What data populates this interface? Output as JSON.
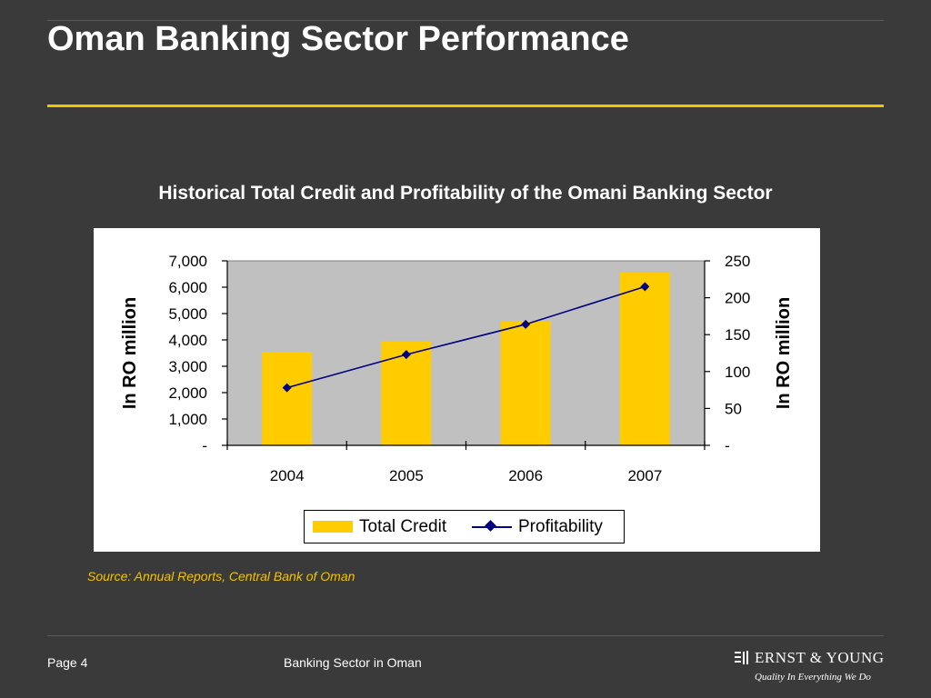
{
  "slide": {
    "title": "Oman Banking Sector Performance",
    "source": "Source: Annual Reports, Central Bank of Oman",
    "page": "Page 4",
    "footer": "Banking Sector in Oman",
    "logo_name": "ERNST & YOUNG",
    "logo_tagline": "Quality In Everything We Do"
  },
  "colors": {
    "background": "#3a3a3a",
    "accent": "#f5c400",
    "bar": "#ffcc00",
    "line": "#000080",
    "plot_bg": "#c0c0c0"
  },
  "chart_data": {
    "type": "bar",
    "title": "Historical Total Credit and Profitability of the Omani Banking Sector",
    "categories": [
      "2004",
      "2005",
      "2006",
      "2007"
    ],
    "series": [
      {
        "name": "Total Credit",
        "type": "bar",
        "axis": "left",
        "values": [
          3550,
          3950,
          4720,
          6550
        ]
      },
      {
        "name": "Profitability",
        "type": "line",
        "axis": "right",
        "values": [
          78,
          123,
          164,
          215
        ]
      }
    ],
    "ylabel": "In RO million",
    "y2label": "In RO million",
    "ylim": [
      0,
      7000
    ],
    "y2lim": [
      0,
      250
    ],
    "yticks": [
      "-",
      "1,000",
      "2,000",
      "3,000",
      "4,000",
      "5,000",
      "6,000",
      "7,000"
    ],
    "y2ticks": [
      "-",
      "50",
      "100",
      "150",
      "200",
      "250"
    ],
    "grid": false,
    "legend": "bottom"
  }
}
